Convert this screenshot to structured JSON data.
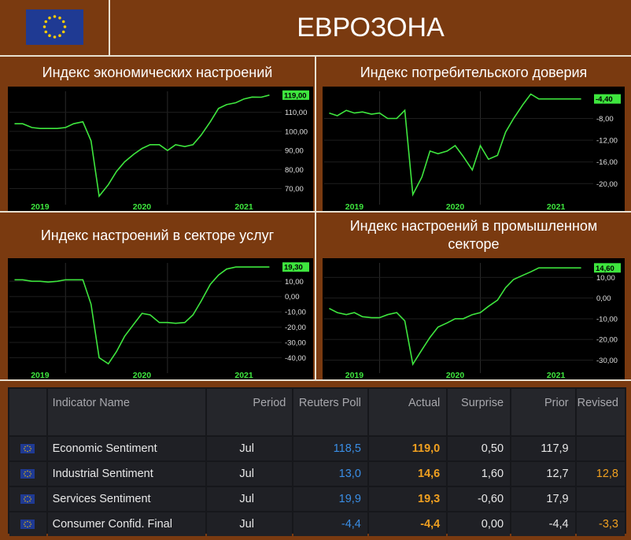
{
  "header": {
    "title": "ЕВРОЗОНА"
  },
  "colors": {
    "background": "#7a3a10",
    "line": "#3ee63e",
    "poll": "#3a8ee6",
    "actual": "#f0a020"
  },
  "panel_titles": [
    "Индекс экономических настроений",
    "Индекс потребительского доверия",
    "Индекс настроений в секторе услуг",
    "Индекс настроений в промышленном секторе"
  ],
  "chart_data": [
    {
      "type": "line",
      "title": "Индекс экономических настроений",
      "x": [
        2019.0,
        2019.08,
        2019.17,
        2019.25,
        2019.33,
        2019.42,
        2019.5,
        2019.58,
        2019.67,
        2019.75,
        2019.83,
        2019.92,
        2020.0,
        2020.08,
        2020.17,
        2020.25,
        2020.33,
        2020.42,
        2020.5,
        2020.58,
        2020.67,
        2020.75,
        2020.83,
        2020.92,
        2021.0,
        2021.08,
        2021.17,
        2021.25,
        2021.33,
        2021.42,
        2021.5
      ],
      "values": [
        104,
        104,
        102,
        101.5,
        101.5,
        101.5,
        102,
        104,
        105,
        95,
        66,
        72,
        79,
        84,
        88,
        91,
        93,
        93,
        90,
        93,
        92,
        93,
        98,
        105,
        112,
        114,
        115,
        117,
        118,
        117.9,
        119
      ],
      "xlabels": [
        "2019",
        "2020",
        "2021"
      ],
      "yticks": [
        "110,00",
        "100,00",
        "90,00",
        "80,00",
        "70,00"
      ],
      "last_label": "119,00",
      "ylim": [
        64,
        121
      ]
    },
    {
      "type": "line",
      "title": "Индекс потребительского доверия",
      "x": [
        2019.0,
        2019.08,
        2019.17,
        2019.25,
        2019.33,
        2019.42,
        2019.5,
        2019.58,
        2019.67,
        2019.75,
        2019.83,
        2019.92,
        2020.0,
        2020.08,
        2020.17,
        2020.25,
        2020.33,
        2020.42,
        2020.5,
        2020.58,
        2020.67,
        2020.75,
        2020.83,
        2020.92,
        2021.0,
        2021.08,
        2021.17,
        2021.25,
        2021.33,
        2021.42,
        2021.5
      ],
      "values": [
        -7.0,
        -7.5,
        -6.5,
        -7.0,
        -6.8,
        -7.2,
        -7.0,
        -8.0,
        -8.0,
        -6.5,
        -22.0,
        -18.8,
        -14.0,
        -14.5,
        -14.0,
        -13.0,
        -15.0,
        -17.5,
        -13.0,
        -15.5,
        -14.8,
        -10.5,
        -8.0,
        -5.5,
        -3.5,
        -4.4,
        -4.4,
        -4.4,
        -4.4,
        -4.4,
        -4.4
      ],
      "xlabels": [
        "2019",
        "2020",
        "2021"
      ],
      "yticks": [
        "-8,00",
        "-12,00",
        "-16,00",
        "-20,00"
      ],
      "last_label": "-4,40",
      "ylim": [
        -23,
        -3
      ]
    },
    {
      "type": "line",
      "title": "Индекс настроений в секторе услуг",
      "x": [
        2019.0,
        2019.08,
        2019.17,
        2019.25,
        2019.33,
        2019.42,
        2019.5,
        2019.58,
        2019.67,
        2019.75,
        2019.83,
        2019.92,
        2020.0,
        2020.08,
        2020.17,
        2020.25,
        2020.33,
        2020.42,
        2020.5,
        2020.58,
        2020.67,
        2020.75,
        2020.83,
        2020.92,
        2021.0,
        2021.08,
        2021.17,
        2021.25,
        2021.33,
        2021.42,
        2021.5
      ],
      "values": [
        11,
        11,
        10,
        10,
        9.5,
        10,
        11,
        11,
        11,
        -5,
        -40,
        -44,
        -36,
        -26,
        -18,
        -11,
        -12,
        -17,
        -17,
        -17.5,
        -17,
        -12,
        -3,
        8,
        14,
        18,
        19.3,
        19.3,
        19.3,
        19.3,
        19.3
      ],
      "xlabels": [
        "2019",
        "2020",
        "2021"
      ],
      "yticks": [
        "10,00",
        "0,00",
        "-10,00",
        "-20,00",
        "-30,00",
        "-40,00"
      ],
      "last_label": "19,30",
      "ylim": [
        -47,
        22
      ]
    },
    {
      "type": "line",
      "title": "Индекс настроений в промышленном секторе",
      "x": [
        2019.0,
        2019.08,
        2019.17,
        2019.25,
        2019.33,
        2019.42,
        2019.5,
        2019.58,
        2019.67,
        2019.75,
        2019.83,
        2019.92,
        2020.0,
        2020.08,
        2020.17,
        2020.25,
        2020.33,
        2020.42,
        2020.5,
        2020.58,
        2020.67,
        2020.75,
        2020.83,
        2020.92,
        2021.0,
        2021.08,
        2021.17,
        2021.25,
        2021.33,
        2021.42,
        2021.5
      ],
      "values": [
        -5,
        -7,
        -8,
        -7,
        -9,
        -9.5,
        -9.5,
        -8,
        -7,
        -11,
        -32,
        -25,
        -19,
        -14,
        -12,
        -10,
        -10,
        -8,
        -7,
        -4,
        -1,
        5,
        9,
        11,
        12.7,
        14.6,
        14.6,
        14.6,
        14.6,
        14.6,
        14.6
      ],
      "xlabels": [
        "2019",
        "2020",
        "2021"
      ],
      "yticks": [
        "10,00",
        "0,00",
        "-10,00",
        "-20,00",
        "-30,00"
      ],
      "last_label": "14,60",
      "ylim": [
        -34,
        17
      ]
    }
  ],
  "table": {
    "headers": [
      "Indicator Name",
      "Period",
      "Reuters Poll",
      "Actual",
      "Surprise",
      "Prior",
      "Revised"
    ],
    "rows": [
      {
        "name": "Economic Sentiment",
        "period": "Jul",
        "poll": "118,5",
        "actual": "119,0",
        "surprise": "0,50",
        "prior": "117,9",
        "revised": ""
      },
      {
        "name": "Industrial Sentiment",
        "period": "Jul",
        "poll": "13,0",
        "actual": "14,6",
        "surprise": "1,60",
        "prior": "12,7",
        "revised": "12,8"
      },
      {
        "name": "Services Sentiment",
        "period": "Jul",
        "poll": "19,9",
        "actual": "19,3",
        "surprise": "-0,60",
        "prior": "17,9",
        "revised": ""
      },
      {
        "name": "Consumer Confid. Final",
        "period": "Jul",
        "poll": "-4,4",
        "actual": "-4,4",
        "surprise": "0,00",
        "prior": "-4,4",
        "revised": "-3,3"
      }
    ]
  }
}
